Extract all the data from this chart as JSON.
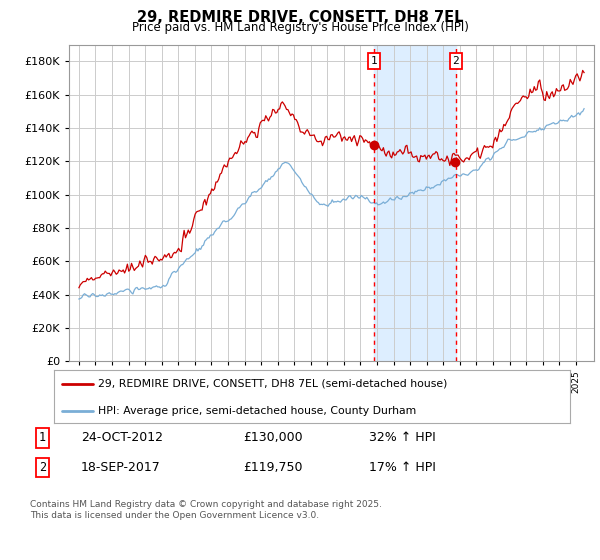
{
  "title": "29, REDMIRE DRIVE, CONSETT, DH8 7EL",
  "subtitle": "Price paid vs. HM Land Registry's House Price Index (HPI)",
  "legend_red": "29, REDMIRE DRIVE, CONSETT, DH8 7EL (semi-detached house)",
  "legend_blue": "HPI: Average price, semi-detached house, County Durham",
  "sale1_date": "24-OCT-2012",
  "sale1_price": "£130,000",
  "sale1_hpi": "32% ↑ HPI",
  "sale2_date": "18-SEP-2017",
  "sale2_price": "£119,750",
  "sale2_hpi": "17% ↑ HPI",
  "footer": "Contains HM Land Registry data © Crown copyright and database right 2025.\nThis data is licensed under the Open Government Licence v3.0.",
  "sale1_year": 2012.8,
  "sale2_year": 2017.75,
  "sale1_price_val": 130000,
  "sale2_price_val": 119750,
  "ylim": [
    0,
    190000
  ],
  "yticks": [
    0,
    20000,
    40000,
    60000,
    80000,
    100000,
    120000,
    140000,
    160000,
    180000
  ],
  "background_color": "#ffffff",
  "grid_color": "#cccccc",
  "red_color": "#cc0000",
  "blue_color": "#7aaed6",
  "shade_color": "#ddeeff"
}
